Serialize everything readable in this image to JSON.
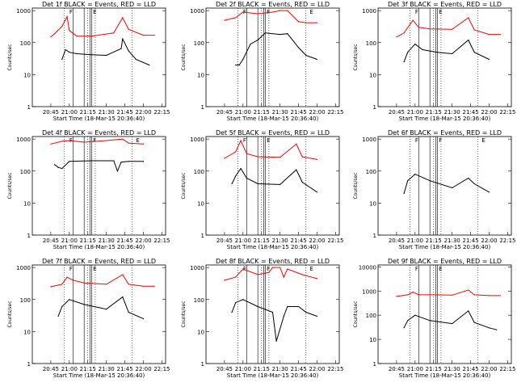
{
  "chart_data": [
    {
      "type": "line",
      "title": "Det 1f BLACK = Events, RED = LLD",
      "xlabel": "Start Time (18-Mar-15 20:36:40)",
      "ylabel": "Counts/sec",
      "x_ticks": [
        "20:45",
        "21:00",
        "21:15",
        "21:30",
        "21:45",
        "22:00",
        "22:15"
      ],
      "y_ticks": [
        "1",
        "10",
        "100",
        "1000"
      ],
      "ylim": [
        1,
        1200
      ],
      "y_scale": "log",
      "series": [
        {
          "name": "RED = LLD",
          "color": "#ff0000",
          "x": [
            20.75,
            20.8,
            20.9,
            20.97,
            21.0,
            21.1,
            21.3,
            21.6,
            21.72,
            21.8,
            22.0,
            22.15
          ],
          "y": [
            150,
            190,
            320,
            650,
            240,
            160,
            160,
            200,
            600,
            260,
            170,
            170
          ]
        },
        {
          "name": "BLACK = Events",
          "color": "#000000",
          "x": [
            20.9,
            20.95,
            21.0,
            21.1,
            21.3,
            21.5,
            21.7,
            21.72,
            21.8,
            21.9,
            22.08
          ],
          "y": [
            30,
            60,
            50,
            45,
            42,
            40,
            65,
            130,
            55,
            30,
            20
          ]
        }
      ],
      "annotations": [
        "F",
        "E"
      ]
    },
    {
      "type": "line",
      "title": "Det 2f BLACK = Events, RED = LLD",
      "xlabel": "Start Time (18-Mar-15 20:36:40)",
      "ylabel": "Counts/sec",
      "x_ticks": [
        "20:45",
        "21:00",
        "21:15",
        "21:30",
        "21:45",
        "22:00",
        "22:15"
      ],
      "y_ticks": [
        "1",
        "10",
        "100",
        "1000"
      ],
      "ylim": [
        1,
        1200
      ],
      "y_scale": "log",
      "series": [
        {
          "name": "RED = LLD",
          "color": "#ff0000",
          "x": [
            20.75,
            20.9,
            21.0,
            21.2,
            21.4,
            21.5,
            21.6,
            21.75,
            21.85,
            22.0
          ],
          "y": [
            500,
            600,
            900,
            800,
            900,
            1000,
            1000,
            450,
            420,
            420
          ]
        },
        {
          "name": "BLACK = Events",
          "color": "#000000",
          "x": [
            20.9,
            20.95,
            21.0,
            21.1,
            21.2,
            21.3,
            21.5,
            21.6,
            21.75,
            21.85,
            22.0
          ],
          "y": [
            20,
            20,
            30,
            90,
            120,
            200,
            180,
            190,
            70,
            40,
            30
          ]
        }
      ],
      "annotations": [
        "F",
        "F",
        "E"
      ]
    },
    {
      "type": "line",
      "title": "Det 3f BLACK = Events, RED = LLD",
      "xlabel": "Start Time (18-Mar-15 20:36:40)",
      "ylabel": "Counts/sec",
      "x_ticks": [
        "20:45",
        "21:00",
        "21:15",
        "21:30",
        "21:45",
        "22:00",
        "22:15"
      ],
      "y_ticks": [
        "1",
        "10",
        "100",
        "1000"
      ],
      "ylim": [
        1,
        1200
      ],
      "y_scale": "log",
      "series": [
        {
          "name": "RED = LLD",
          "color": "#ff0000",
          "x": [
            20.75,
            20.85,
            20.97,
            21.05,
            21.2,
            21.5,
            21.72,
            21.8,
            22.0,
            22.15
          ],
          "y": [
            150,
            200,
            500,
            300,
            270,
            260,
            600,
            250,
            180,
            180
          ]
        },
        {
          "name": "BLACK = Events",
          "color": "#000000",
          "x": [
            20.85,
            20.9,
            21.0,
            21.1,
            21.3,
            21.5,
            21.72,
            21.8,
            22.0
          ],
          "y": [
            25,
            50,
            90,
            60,
            50,
            45,
            120,
            50,
            30
          ]
        }
      ],
      "annotations": [
        "F",
        "E"
      ]
    },
    {
      "type": "line",
      "title": "Det 4f BLACK = Events, RED = LLD",
      "xlabel": "Start Time (18-Mar-15 20:36:40)",
      "ylabel": "Counts/sec",
      "x_ticks": [
        "20:45",
        "21:00",
        "21:15",
        "21:30",
        "21:45",
        "22:00",
        "22:15"
      ],
      "y_ticks": [
        "1",
        "10",
        "100",
        "1000"
      ],
      "ylim": [
        1,
        1200
      ],
      "y_scale": "log",
      "series": [
        {
          "name": "RED = LLD",
          "color": "#ff0000",
          "x": [
            20.75,
            20.9,
            21.0,
            21.2,
            21.5,
            21.72,
            21.8,
            22.0
          ],
          "y": [
            700,
            850,
            900,
            800,
            900,
            1000,
            750,
            700
          ]
        },
        {
          "name": "BLACK = Events",
          "color": "#000000",
          "x": [
            20.8,
            20.85,
            20.9,
            21.0,
            21.3,
            21.6,
            21.65,
            21.7,
            21.8,
            22.0
          ],
          "y": [
            160,
            130,
            120,
            200,
            210,
            210,
            100,
            190,
            200,
            200
          ]
        }
      ],
      "annotations": [
        "F",
        "F",
        "E"
      ]
    },
    {
      "type": "line",
      "title": "Det 5f BLACK = Events, RED = LLD",
      "xlabel": "Start Time (18-Mar-15 20:36:40)",
      "ylabel": "Counts/sec",
      "x_ticks": [
        "20:45",
        "21:00",
        "21:15",
        "21:30",
        "21:45",
        "22:00",
        "22:15"
      ],
      "y_ticks": [
        "1",
        "10",
        "100",
        "1000"
      ],
      "ylim": [
        1,
        1200
      ],
      "y_scale": "log",
      "series": [
        {
          "name": "RED = LLD",
          "color": "#ff0000",
          "x": [
            20.75,
            20.9,
            20.97,
            21.05,
            21.2,
            21.5,
            21.72,
            21.8,
            22.0
          ],
          "y": [
            250,
            400,
            900,
            350,
            280,
            270,
            700,
            280,
            230
          ]
        },
        {
          "name": "BLACK = Events",
          "color": "#000000",
          "x": [
            20.85,
            20.9,
            20.97,
            21.05,
            21.2,
            21.5,
            21.72,
            21.8,
            22.0
          ],
          "y": [
            40,
            70,
            120,
            60,
            40,
            38,
            110,
            45,
            22
          ]
        }
      ],
      "annotations": [
        "F",
        "E"
      ]
    },
    {
      "type": "line",
      "title": "Det 6f BLACK = Events, RED = LLD",
      "xlabel": "Start Time (18-Mar-15 20:36:40)",
      "ylabel": "Counts/sec",
      "x_ticks": [
        "20:45",
        "21:00",
        "21:15",
        "21:30",
        "21:45",
        "22:00",
        "22:15"
      ],
      "y_ticks": [
        "1",
        "10",
        "100",
        "1000"
      ],
      "ylim": [
        1,
        1200
      ],
      "y_scale": "log",
      "series": [
        {
          "name": "BLACK = Events",
          "color": "#000000",
          "x": [
            20.85,
            20.9,
            21.0,
            21.2,
            21.5,
            21.72,
            21.8,
            22.0
          ],
          "y": [
            20,
            50,
            80,
            50,
            30,
            60,
            40,
            22
          ]
        }
      ],
      "annotations": [
        "F",
        "F",
        "E"
      ]
    },
    {
      "type": "line",
      "title": "Det 7f BLACK = Events, RED = LLD",
      "xlabel": "Start Time (18-Mar-15 20:36:40)",
      "ylabel": "Counts/sec",
      "x_ticks": [
        "20:45",
        "21:00",
        "21:15",
        "21:30",
        "21:45",
        "22:00",
        "22:15"
      ],
      "y_ticks": [
        "1",
        "10",
        "100",
        "1000"
      ],
      "ylim": [
        1,
        1200
      ],
      "y_scale": "log",
      "series": [
        {
          "name": "RED = LLD",
          "color": "#ff0000",
          "x": [
            20.75,
            20.9,
            20.97,
            21.05,
            21.2,
            21.5,
            21.72,
            21.8,
            22.0,
            22.15
          ],
          "y": [
            250,
            300,
            500,
            400,
            330,
            300,
            600,
            300,
            260,
            260
          ]
        },
        {
          "name": "BLACK = Events",
          "color": "#000000",
          "x": [
            20.85,
            20.9,
            21.0,
            21.2,
            21.5,
            21.72,
            21.8,
            22.0
          ],
          "y": [
            30,
            60,
            100,
            70,
            50,
            120,
            40,
            25
          ]
        }
      ],
      "annotations": [
        "F",
        "E"
      ]
    },
    {
      "type": "line",
      "title": "Det 8f BLACK = Events, RED = LLD",
      "xlabel": "Start Time (18-Mar-15 20:36:40)",
      "ylabel": "Counts/sec",
      "x_ticks": [
        "20:45",
        "21:00",
        "21:15",
        "21:30",
        "21:45",
        "22:00",
        "22:15"
      ],
      "y_ticks": [
        "1",
        "10",
        "100",
        "1000"
      ],
      "ylim": [
        1,
        1200
      ],
      "y_scale": "log",
      "series": [
        {
          "name": "RED = LLD",
          "color": "#ff0000",
          "x": [
            20.75,
            20.9,
            21.0,
            21.2,
            21.35,
            21.4,
            21.5,
            21.55,
            21.6,
            21.8,
            22.0
          ],
          "y": [
            400,
            500,
            900,
            600,
            700,
            1000,
            1000,
            500,
            900,
            600,
            450
          ]
        },
        {
          "name": "BLACK = Events",
          "color": "#000000",
          "x": [
            20.85,
            20.9,
            21.0,
            21.2,
            21.4,
            21.45,
            21.55,
            21.6,
            21.75,
            21.85,
            22.0
          ],
          "y": [
            40,
            80,
            100,
            60,
            40,
            5,
            30,
            60,
            60,
            40,
            30
          ]
        }
      ],
      "annotations": [
        "F",
        "F",
        "E"
      ]
    },
    {
      "type": "line",
      "title": "Det 9f BLACK = Events, RED = LLD",
      "xlabel": "Start Time (18-Mar-15 20:36:40)",
      "ylabel": "Counts/sec",
      "x_ticks": [
        "20:45",
        "21:00",
        "21:15",
        "21:30",
        "21:45",
        "22:00",
        "22:15"
      ],
      "y_ticks": [
        "1",
        "10",
        "100",
        "1000",
        "10000"
      ],
      "ylim": [
        1,
        12000
      ],
      "y_scale": "log",
      "series": [
        {
          "name": "RED = LLD",
          "color": "#ff0000",
          "x": [
            20.75,
            20.9,
            20.97,
            21.05,
            21.2,
            21.5,
            21.72,
            21.8,
            22.0,
            22.15
          ],
          "y": [
            600,
            700,
            900,
            700,
            700,
            680,
            1100,
            700,
            650,
            650
          ]
        },
        {
          "name": "BLACK = Events",
          "color": "#000000",
          "x": [
            20.85,
            20.9,
            21.0,
            21.2,
            21.5,
            21.72,
            21.8,
            22.0,
            22.1
          ],
          "y": [
            30,
            60,
            100,
            60,
            45,
            150,
            50,
            30,
            25
          ]
        }
      ],
      "annotations": [
        "F",
        "E"
      ]
    }
  ]
}
